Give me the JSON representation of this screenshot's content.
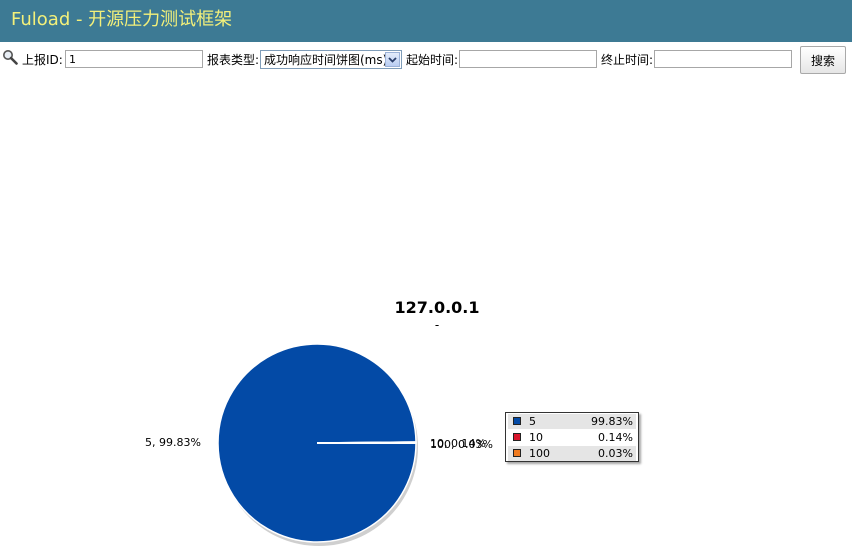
{
  "header": {
    "title": "Fuload - 开源压力测试框架"
  },
  "toolbar": {
    "search_icon": "search-icon",
    "report_id_label": "上报ID:",
    "report_id_value": "1",
    "report_type_label": "报表类型:",
    "report_type_value": "成功响应时间饼图(ms)",
    "start_time_label": "起始时间:",
    "start_time_value": "",
    "end_time_label": "终止时间:",
    "end_time_value": "",
    "search_button": "搜索"
  },
  "chart_data": {
    "type": "pie",
    "title": "127.0.0.1",
    "subtitle": "-",
    "legend_position": "right",
    "slices": [
      {
        "name": "5",
        "value": 99.83,
        "percent_label": "99.83%",
        "color": "#034aa6",
        "label": "5, 99.83%"
      },
      {
        "name": "10",
        "value": 0.14,
        "percent_label": "0.14%",
        "color": "#d9162c",
        "label": "10, 0.14%"
      },
      {
        "name": "100",
        "value": 0.03,
        "percent_label": "0.03%",
        "color": "#f07a1e",
        "label": "100, 0.03%"
      }
    ]
  }
}
